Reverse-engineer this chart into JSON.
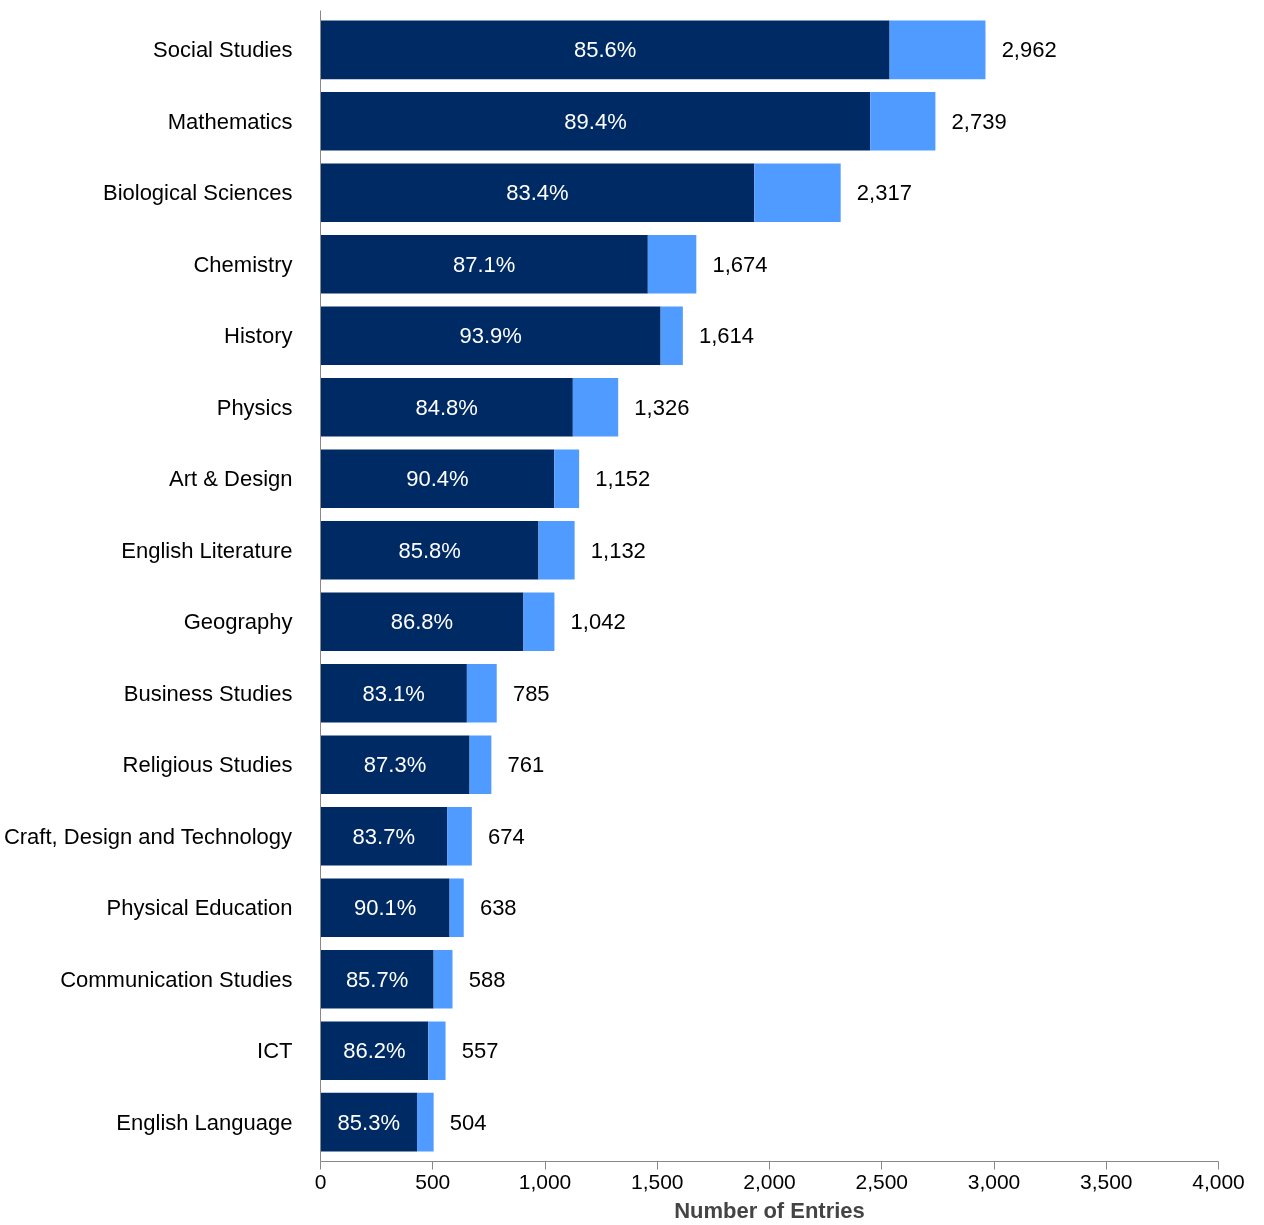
{
  "chart_data": {
    "type": "bar",
    "orientation": "horizontal",
    "stacked": true,
    "xlabel": "Number of Entries",
    "categories": [
      "Social Studies",
      "Mathematics",
      "Biological Sciences",
      "Chemistry",
      "History",
      "Physics",
      "Art & Design",
      "English Literature",
      "Geography",
      "Business Studies",
      "Religious Studies",
      "Craft, Design and Technology",
      "Physical Education",
      "Communication Studies",
      "ICT",
      "English Language"
    ],
    "series": [
      {
        "color": "#002a64",
        "values": [
          2535,
          2449,
          1932,
          1458,
          1515,
          1124,
          1041,
          971,
          904,
          652,
          664,
          564,
          575,
          504,
          480,
          430
        ]
      },
      {
        "color": "#4f9bff",
        "values": [
          427,
          290,
          385,
          216,
          99,
          202,
          111,
          161,
          138,
          133,
          97,
          110,
          63,
          84,
          77,
          74
        ]
      }
    ],
    "annotations": [
      {
        "text": "85.6%",
        "x": 1268,
        "y": "Social Studies"
      },
      {
        "text": "89.4%",
        "x": 1225,
        "y": "Mathematics"
      },
      {
        "text": "83.4%",
        "x": 966,
        "y": "Biological Sciences"
      },
      {
        "text": "87.1%",
        "x": 729,
        "y": "Chemistry"
      },
      {
        "text": "93.9%",
        "x": 758,
        "y": "History"
      },
      {
        "text": "84.8%",
        "x": 562,
        "y": "Physics"
      },
      {
        "text": "90.4%",
        "x": 521,
        "y": "Art & Design"
      },
      {
        "text": "85.8%",
        "x": 486,
        "y": "English Literature"
      },
      {
        "text": "86.8%",
        "x": 452,
        "y": "Geography"
      },
      {
        "text": "83.1%",
        "x": 326,
        "y": "Business Studies"
      },
      {
        "text": "87.3%",
        "x": 332,
        "y": "Religious Studies"
      },
      {
        "text": "83.7%",
        "x": 282,
        "y": "Craft, Design and Technology"
      },
      {
        "text": "90.1%",
        "x": 288,
        "y": "Physical Education"
      },
      {
        "text": "85.7%",
        "x": 252,
        "y": "Communication Studies"
      },
      {
        "text": "86.2%",
        "x": 240,
        "y": "ICT"
      },
      {
        "text": "85.3%",
        "x": 215,
        "y": "English Language"
      }
    ],
    "totals": [
      "2,962",
      "2,739",
      "2,317",
      "1,674",
      "1,614",
      "1,326",
      "1,152",
      "1,132",
      "1,042",
      "785",
      "761",
      "674",
      "638",
      "588",
      "557",
      "504"
    ],
    "xlim": [
      0,
      4000
    ],
    "xticks": [
      0,
      500,
      {
        "value": 1000,
        "label": "1,000"
      },
      {
        "value": 1500,
        "label": "1,500"
      },
      {
        "value": 2000,
        "label": "2,000"
      },
      {
        "value": 2500,
        "label": "2,500"
      },
      {
        "value": 3000,
        "label": "3,000"
      },
      {
        "value": 3500,
        "label": "3,500"
      },
      {
        "value": 4000,
        "label": "4,000"
      }
    ]
  }
}
